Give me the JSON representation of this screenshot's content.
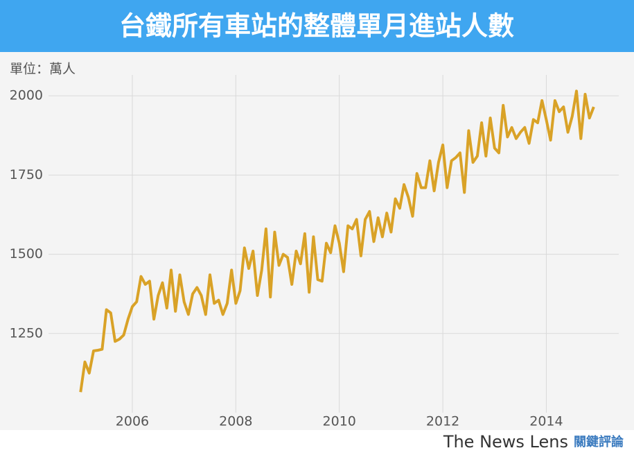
{
  "chart_data": {
    "type": "line",
    "title": "台鐵所有車站的整體單月進站人數",
    "unit_label": "單位：萬人",
    "footer": {
      "brand": "The News Lens",
      "brand_cn": "關鍵評論"
    },
    "x": [
      2005,
      2005.083,
      2005.167,
      2005.25,
      2005.333,
      2005.417,
      2005.5,
      2005.583,
      2005.667,
      2005.75,
      2005.833,
      2005.917,
      2006,
      2006.083,
      2006.167,
      2006.25,
      2006.333,
      2006.417,
      2006.5,
      2006.583,
      2006.667,
      2006.75,
      2006.833,
      2006.917,
      2007,
      2007.083,
      2007.167,
      2007.25,
      2007.333,
      2007.417,
      2007.5,
      2007.583,
      2007.667,
      2007.75,
      2007.833,
      2007.917,
      2008,
      2008.083,
      2008.167,
      2008.25,
      2008.333,
      2008.417,
      2008.5,
      2008.583,
      2008.667,
      2008.75,
      2008.833,
      2008.917,
      2009,
      2009.083,
      2009.167,
      2009.25,
      2009.333,
      2009.417,
      2009.5,
      2009.583,
      2009.667,
      2009.75,
      2009.833,
      2009.917,
      2010,
      2010.083,
      2010.167,
      2010.25,
      2010.333,
      2010.417,
      2010.5,
      2010.583,
      2010.667,
      2010.75,
      2010.833,
      2010.917,
      2011,
      2011.083,
      2011.167,
      2011.25,
      2011.333,
      2011.417,
      2011.5,
      2011.583,
      2011.667,
      2011.75,
      2011.833,
      2011.917,
      2012,
      2012.083,
      2012.167,
      2012.25,
      2012.333,
      2012.417,
      2012.5,
      2012.583,
      2012.667,
      2012.75,
      2012.833,
      2012.917,
      2013,
      2013.083,
      2013.167,
      2013.25,
      2013.333,
      2013.417,
      2013.5,
      2013.583,
      2013.667,
      2013.75,
      2013.833,
      2013.917,
      2014,
      2014.083,
      2014.167,
      2014.25,
      2014.333,
      2014.417,
      2014.5,
      2014.583,
      2014.667,
      2014.75,
      2014.833,
      2014.917
    ],
    "series": [
      {
        "color": "#d9a227",
        "values": [
          1065,
          1160,
          1125,
          1195,
          1197,
          1200,
          1325,
          1315,
          1225,
          1232,
          1245,
          1295,
          1335,
          1350,
          1430,
          1405,
          1415,
          1295,
          1370,
          1410,
          1330,
          1450,
          1320,
          1435,
          1350,
          1310,
          1375,
          1395,
          1370,
          1310,
          1435,
          1345,
          1355,
          1310,
          1345,
          1450,
          1345,
          1385,
          1520,
          1455,
          1510,
          1370,
          1450,
          1580,
          1365,
          1570,
          1465,
          1500,
          1490,
          1405,
          1510,
          1470,
          1565,
          1380,
          1555,
          1420,
          1415,
          1535,
          1505,
          1590,
          1535,
          1445,
          1590,
          1580,
          1610,
          1495,
          1610,
          1635,
          1540,
          1615,
          1555,
          1630,
          1570,
          1675,
          1645,
          1720,
          1680,
          1620,
          1755,
          1710,
          1710,
          1795,
          1700,
          1790,
          1845,
          1710,
          1795,
          1805,
          1820,
          1695,
          1890,
          1790,
          1810,
          1915,
          1810,
          1930,
          1835,
          1820,
          1970,
          1870,
          1900,
          1865,
          1885,
          1900,
          1850,
          1925,
          1915,
          1985,
          1925,
          1860,
          1985,
          1950,
          1965,
          1885,
          1935,
          2015,
          1865,
          2005,
          1930,
          1965
        ]
      }
    ],
    "xlim": [
      2004.38,
      2015.4
    ],
    "xticks": [
      2006,
      2008,
      2010,
      2012,
      2014
    ],
    "ylim": [
      1000,
      2066
    ],
    "yticks": [
      1250,
      1500,
      1750,
      2000
    ],
    "grid": true
  }
}
